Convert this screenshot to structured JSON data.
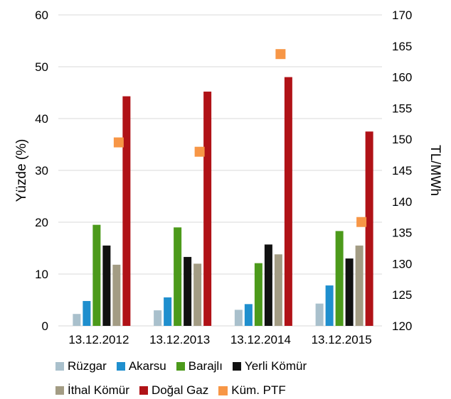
{
  "chart_data": {
    "type": "bar",
    "categories": [
      "13.12.2012",
      "13.12.2013",
      "13.12.2014",
      "13.12.2015"
    ],
    "series": [
      {
        "name": "Rüzgar",
        "axis": "left",
        "color": "#a9c0cc",
        "values": [
          2.3,
          3.0,
          3.1,
          4.3
        ]
      },
      {
        "name": "Akarsu",
        "axis": "left",
        "color": "#1f8fce",
        "values": [
          4.8,
          5.5,
          4.2,
          7.8
        ]
      },
      {
        "name": "Barajlı",
        "axis": "left",
        "color": "#4c9a1b",
        "values": [
          19.5,
          19.0,
          12.1,
          18.3
        ]
      },
      {
        "name": "Yerli Kömür",
        "axis": "left",
        "color": "#111111",
        "values": [
          15.5,
          13.3,
          15.7,
          13.0
        ]
      },
      {
        "name": "İthal Kömür",
        "axis": "left",
        "color": "#a39c84",
        "values": [
          11.8,
          12.0,
          13.8,
          15.5
        ]
      },
      {
        "name": "Doğal Gaz",
        "axis": "left",
        "color": "#b01217",
        "values": [
          44.3,
          45.2,
          48.0,
          37.5
        ]
      },
      {
        "name": "Küm. PTF",
        "axis": "right",
        "type": "scatter",
        "color": "#f79646",
        "values": [
          149.5,
          148.0,
          163.7,
          136.7
        ]
      }
    ],
    "ylabel": "Yüzde (%)",
    "y2label": "TL/MWh",
    "ylim": [
      0,
      60
    ],
    "y2lim": [
      120,
      170
    ],
    "yticks": [
      "0",
      "10",
      "20",
      "30",
      "40",
      "50",
      "60"
    ],
    "y2ticks": [
      "120",
      "125",
      "130",
      "135",
      "140",
      "145",
      "150",
      "155",
      "160",
      "165",
      "170"
    ],
    "grid": true,
    "legend": "bottom"
  }
}
